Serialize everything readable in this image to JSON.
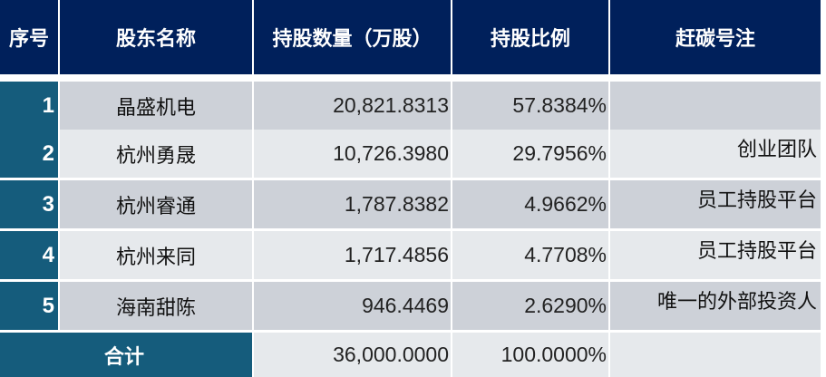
{
  "headers": [
    "序号",
    "股东名称",
    "持股数量（万股）",
    "持股比例",
    "赶碳号注"
  ],
  "rows": [
    {
      "no": "1",
      "name": "晶盛机电",
      "shares": "20,821.8313",
      "ratio": "57.8384%",
      "note": ""
    },
    {
      "no": "2",
      "name": "杭州勇晟",
      "shares": "10,726.3980",
      "ratio": "29.7956%",
      "note": "创业团队"
    },
    {
      "no": "3",
      "name": "杭州睿通",
      "shares": "1,787.8382",
      "ratio": "4.9662%",
      "note": "员工持股平台"
    },
    {
      "no": "4",
      "name": "杭州来同",
      "shares": "1,717.4856",
      "ratio": "4.7708%",
      "note": "员工持股平台"
    },
    {
      "no": "5",
      "name": "海南甜陈",
      "shares": "946.4469",
      "ratio": "2.6290%",
      "note": "唯一的外部投资人"
    }
  ],
  "total": {
    "label": "合计",
    "shares": "36,000.0000",
    "ratio": "100.0000%"
  },
  "colors": {
    "header": "#00205b",
    "index": "#155c7c",
    "row_dark": "#cdd1d8",
    "row_light": "#e6e9ec"
  }
}
